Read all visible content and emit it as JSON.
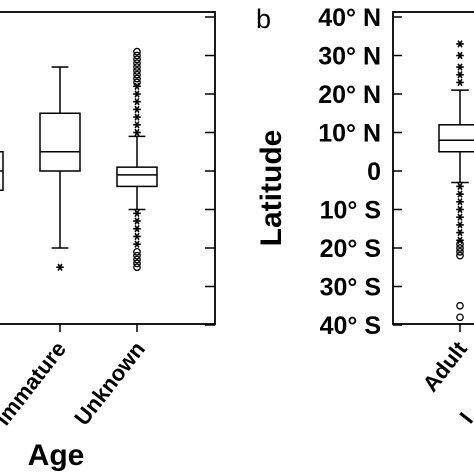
{
  "chart_data": [
    {
      "type": "box",
      "panel": "a",
      "panel_label": "",
      "xlabel": "Age",
      "ylabel": "",
      "categories": [
        "",
        "Immature",
        "Unknown"
      ],
      "visible_tick_labels": [
        "ımmature",
        "Unknown"
      ],
      "ylim": [
        -40,
        40
      ],
      "boxes": [
        {
          "category": "",
          "q1": -5,
          "median": 0,
          "q3": 5,
          "whisker_low": null,
          "whisker_high": null,
          "outliers_circle": [],
          "outliers_star": []
        },
        {
          "category": "Immature",
          "q1": 0,
          "median": 5,
          "q3": 15,
          "whisker_low": -20,
          "whisker_high": 27,
          "outliers_circle": [],
          "outliers_star": [
            -25
          ]
        },
        {
          "category": "Unknown",
          "q1": -4,
          "median": -1,
          "q3": 1,
          "whisker_low": -10,
          "whisker_high": 9,
          "outliers_circle": [
            -25,
            -24,
            -23,
            -22,
            -21,
            23,
            24,
            25,
            26,
            27,
            28,
            29,
            30,
            31
          ],
          "outliers_star": [
            -19,
            -17,
            -15,
            -13,
            -11,
            10,
            12,
            14,
            16,
            18,
            20,
            22
          ]
        }
      ]
    },
    {
      "type": "box",
      "panel": "b",
      "panel_label": "b",
      "xlabel": "",
      "ylabel": "Latitude",
      "categories": [
        "Adult",
        ""
      ],
      "visible_tick_labels": [
        "Adult",
        "I"
      ],
      "yticks": [
        40,
        30,
        20,
        10,
        0,
        -10,
        -20,
        -30,
        -40
      ],
      "ytick_labels": [
        "40° N",
        "30° N",
        "20° N",
        "10° N",
        "0",
        "10° S",
        "20° S",
        "30° S",
        "40° S"
      ],
      "ylim": [
        -40,
        40
      ],
      "boxes": [
        {
          "category": "Adult",
          "q1": 5,
          "median": 8,
          "q3": 12,
          "whisker_low": -3,
          "whisker_high": 21,
          "outliers_circle": [
            -22,
            -21,
            -20,
            -19,
            -35,
            -38
          ],
          "outliers_star": [
            23,
            25,
            27,
            30,
            33,
            -4,
            -6,
            -8,
            -10,
            -12,
            -14,
            -16,
            -18
          ]
        }
      ]
    }
  ]
}
